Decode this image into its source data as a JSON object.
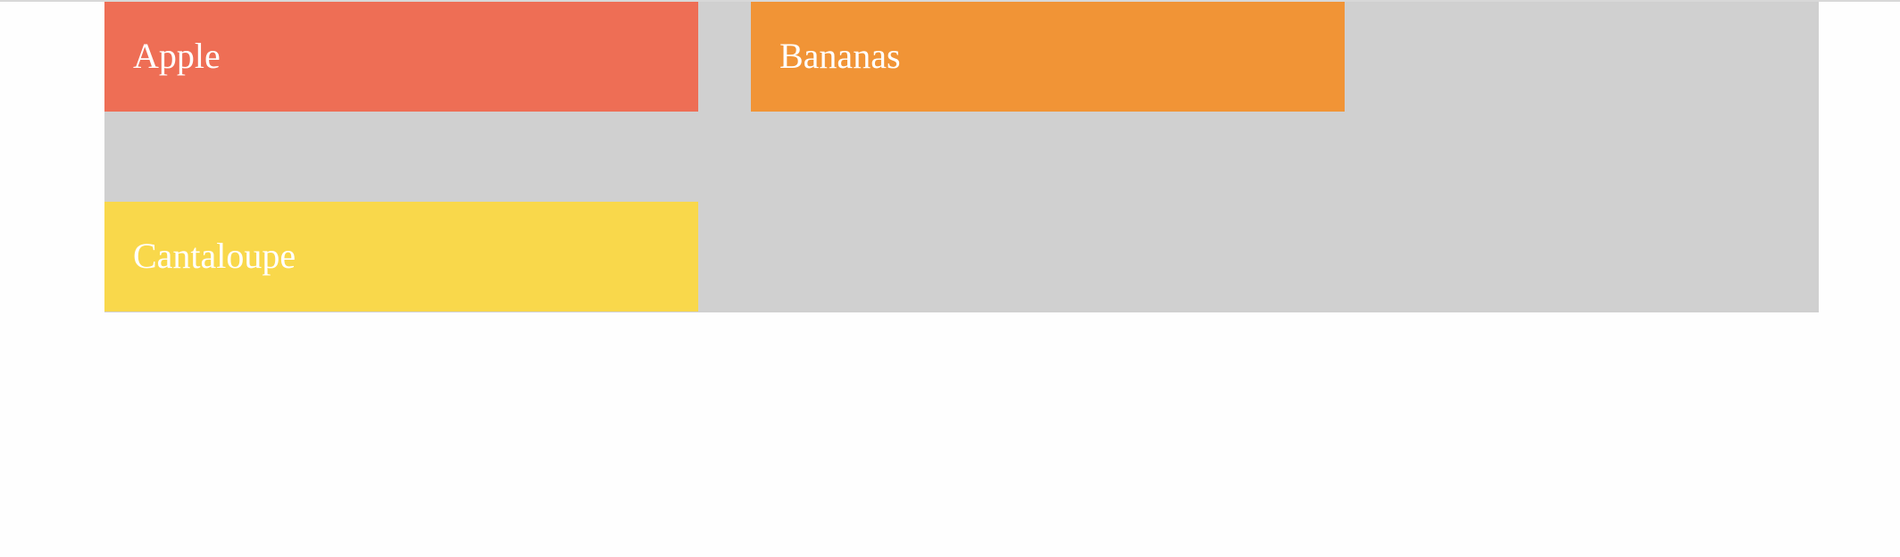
{
  "tiles": [
    {
      "label": "Apple",
      "color": "#ee6e55"
    },
    {
      "label": "Bananas",
      "color": "#f19436"
    },
    {
      "label": "Cantaloupe",
      "color": "#f9d84b"
    }
  ],
  "colors": {
    "container_background": "#d0d0d0",
    "page_background": "#fefefe",
    "label_text": "#ffffff"
  }
}
